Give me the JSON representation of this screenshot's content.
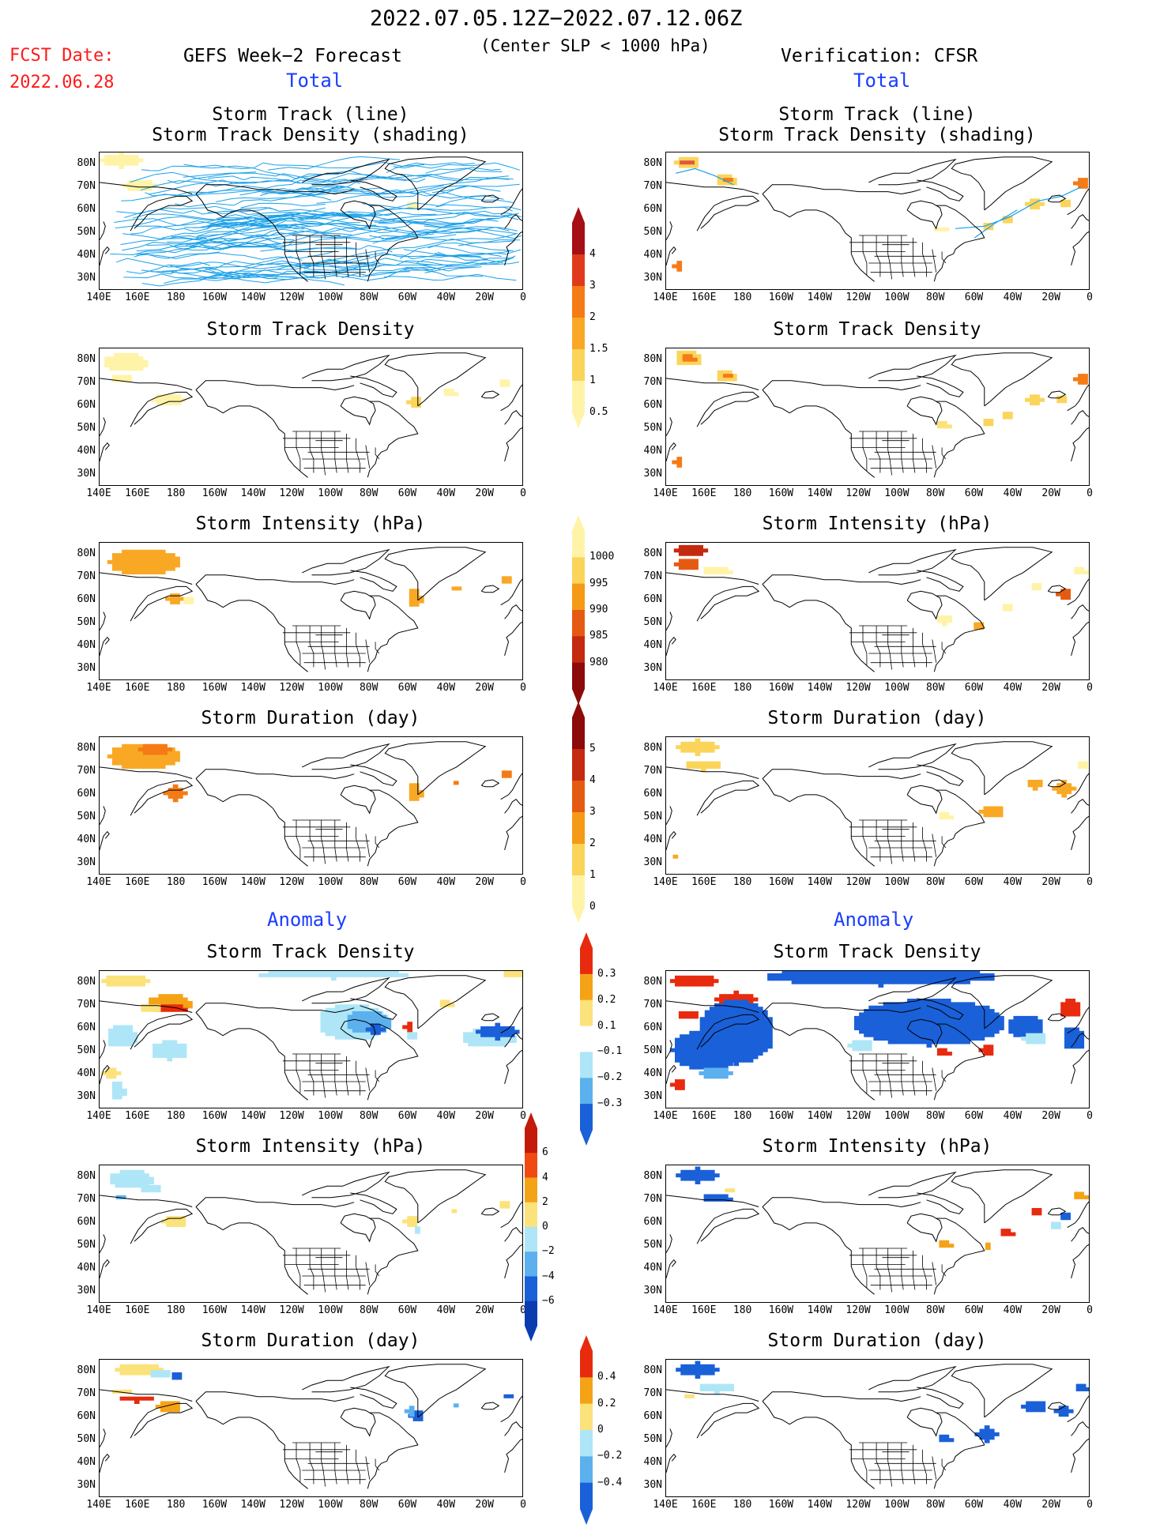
{
  "header": {
    "dates": "2022.07.05.12Z−2022.07.12.06Z",
    "criterion": "(Center SLP < 1000 hPa)",
    "fcst_label": "FCST Date:",
    "fcst_date": "2022.06.28",
    "left_title": "GEFS Week−2 Forecast",
    "right_title": "Verification: CFSR",
    "total_label": "Total",
    "anomaly_label": "Anomaly"
  },
  "panel_titles": {
    "track_line": "Storm Track (line)",
    "track_shading": "Storm Track Density (shading)",
    "density": "Storm Track Density",
    "intensity": "Storm Intensity (hPa)",
    "duration": "Storm Duration (day)"
  },
  "axes": {
    "lat_labels": [
      "80N",
      "70N",
      "60N",
      "50N",
      "40N",
      "30N"
    ],
    "lon_labels": [
      "140E",
      "160E",
      "180",
      "160W",
      "140W",
      "120W",
      "100W",
      "80W",
      "60W",
      "40W",
      "20W",
      "0"
    ]
  },
  "colorbars": {
    "density_total": {
      "labels": [
        "4",
        "3",
        "2",
        "1.5",
        "1",
        "0.5"
      ],
      "colors": [
        "#a50f15",
        "#e03a1c",
        "#f57b16",
        "#f9a825",
        "#fbd45a",
        "#fff3a8"
      ]
    },
    "intensity_total": {
      "labels": [
        "1000",
        "995",
        "990",
        "985",
        "980"
      ],
      "colors": [
        "#fff3a8",
        "#fbd45a",
        "#f59a16",
        "#e55a12",
        "#c42a10",
        "#8c0a0a"
      ]
    },
    "duration_total": {
      "labels": [
        "5",
        "4",
        "3",
        "2",
        "1",
        "0"
      ],
      "colors": [
        "#8c0a0a",
        "#c42a10",
        "#e55a12",
        "#f59a16",
        "#fbd45a",
        "#fff3a8"
      ]
    },
    "density_anom": {
      "labels": [
        "0.3",
        "0.2",
        "0.1",
        "−0.1",
        "−0.2",
        "−0.3"
      ],
      "colors": [
        "#e82a0e",
        "#f5a316",
        "#fbe27a",
        "#ffffff",
        "#aee6f7",
        "#5cb0ee",
        "#1a60d8"
      ]
    },
    "intensity_anom": {
      "labels": [
        "6",
        "4",
        "2",
        "0",
        "−2",
        "−4",
        "−6"
      ],
      "colors": [
        "#c41a0a",
        "#f04a12",
        "#f5a316",
        "#fbe27a",
        "#aee6f7",
        "#5cb0ee",
        "#1a60d8",
        "#0a3cb0"
      ]
    },
    "duration_anom": {
      "labels": [
        "0.4",
        "0.2",
        "0",
        "−0.2",
        "−0.4"
      ],
      "colors": [
        "#e82a0e",
        "#f5a316",
        "#fbe27a",
        "#aee6f7",
        "#5cb0ee",
        "#1a60d8"
      ]
    }
  }
}
